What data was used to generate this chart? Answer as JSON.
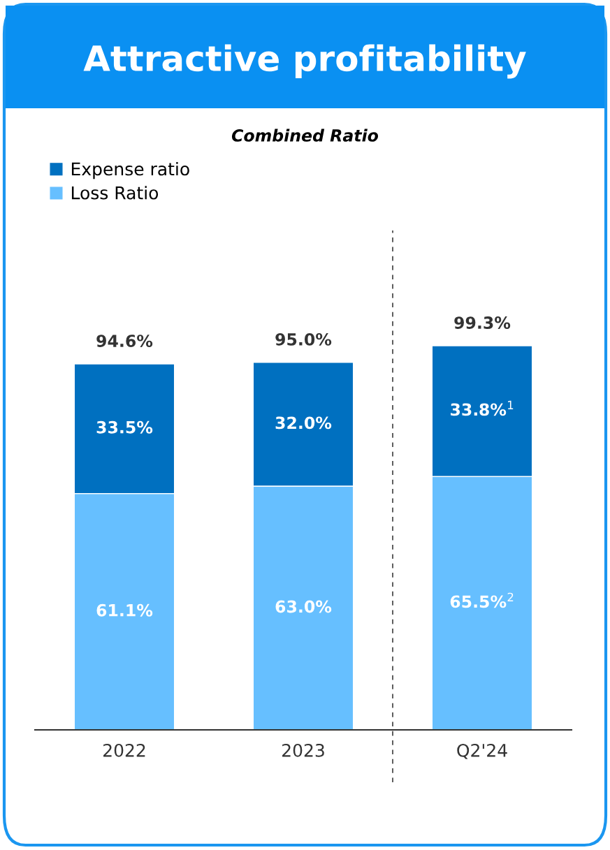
{
  "chart_data": {
    "type": "bar",
    "title": "Attractive profitability",
    "subtitle": "Combined Ratio",
    "categories": [
      "2022",
      "2023",
      "Q2'24"
    ],
    "stacked": true,
    "legend": "top left",
    "series": [
      {
        "name": "Loss Ratio",
        "color": "#66bfff",
        "values": [
          61.1,
          63.0,
          65.5
        ],
        "value_labels": [
          "61.1%",
          "63.0%",
          "65.5%$^{2}$"
        ]
      },
      {
        "name": "Expense ratio",
        "color": "#0070c0",
        "values": [
          33.5,
          32.0,
          33.8
        ],
        "value_labels": [
          "33.5%",
          "32.0%",
          "33.8%$^{1}$"
        ]
      }
    ],
    "totals": [
      "94.6%",
      "95.0%",
      "99.3%"
    ]
  }
}
